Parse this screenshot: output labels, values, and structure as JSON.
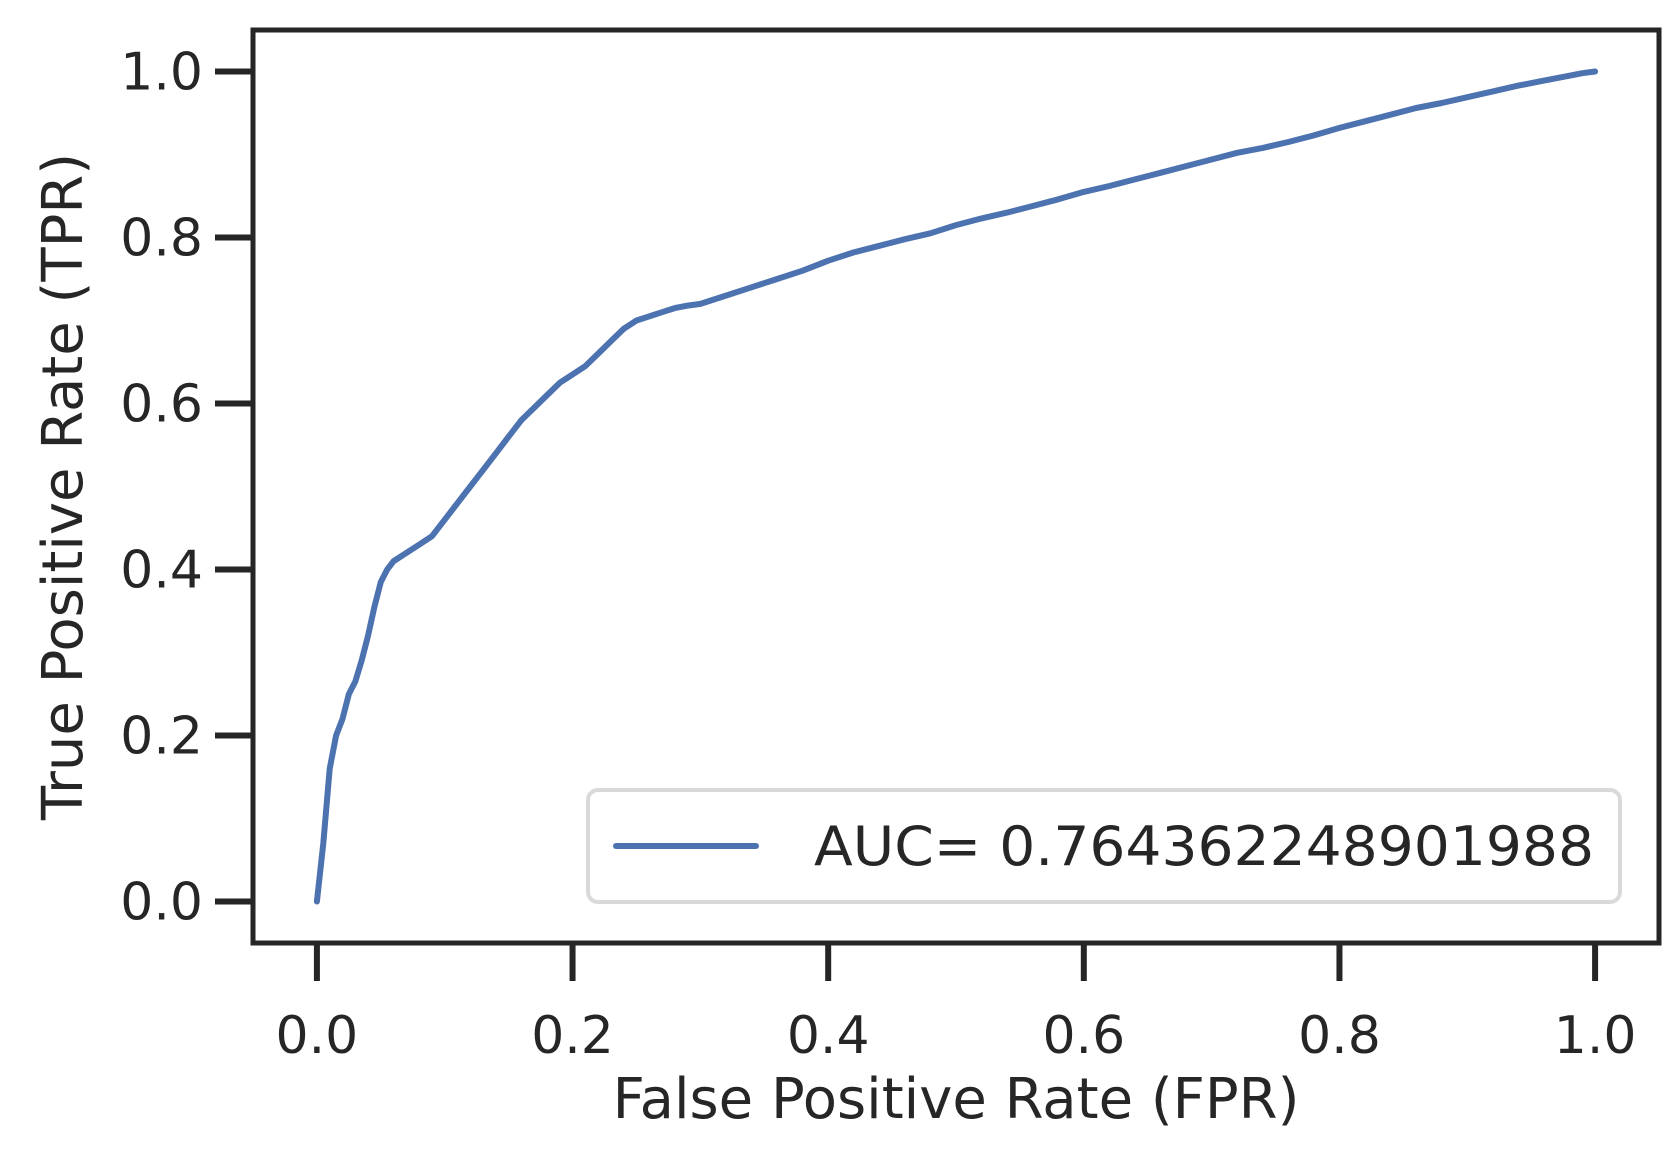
{
  "chart_data": {
    "type": "line",
    "title": "",
    "xlabel": "False Positive Rate (FPR)",
    "ylabel": "True Positive Rate (TPR)",
    "xlim": [
      -0.05,
      1.05
    ],
    "ylim": [
      -0.05,
      1.05
    ],
    "xticks": [
      0.0,
      0.2,
      0.4,
      0.6,
      0.8,
      1.0
    ],
    "xtick_labels": [
      "0.0",
      "0.2",
      "0.4",
      "0.6",
      "0.8",
      "1.0"
    ],
    "yticks": [
      0.0,
      0.2,
      0.4,
      0.6,
      0.8,
      1.0
    ],
    "ytick_labels": [
      "0.0",
      "0.2",
      "0.4",
      "0.6",
      "0.8",
      "1.0"
    ],
    "grid": false,
    "legend": {
      "position": "lower-right"
    },
    "colors": {
      "series": "#4c72b0",
      "axes": "#262626",
      "legend_border": "#d9d9d9"
    },
    "series": [
      {
        "name": "AUC= 0.764362248901988",
        "x": [
          0.0,
          0.005,
          0.01,
          0.015,
          0.02,
          0.025,
          0.03,
          0.035,
          0.04,
          0.045,
          0.05,
          0.055,
          0.06,
          0.07,
          0.08,
          0.09,
          0.1,
          0.11,
          0.12,
          0.13,
          0.14,
          0.15,
          0.16,
          0.17,
          0.18,
          0.19,
          0.2,
          0.21,
          0.22,
          0.23,
          0.24,
          0.25,
          0.26,
          0.27,
          0.28,
          0.29,
          0.3,
          0.32,
          0.34,
          0.36,
          0.38,
          0.4,
          0.42,
          0.44,
          0.46,
          0.48,
          0.5,
          0.52,
          0.54,
          0.56,
          0.58,
          0.6,
          0.62,
          0.64,
          0.66,
          0.68,
          0.7,
          0.72,
          0.74,
          0.76,
          0.78,
          0.8,
          0.82,
          0.84,
          0.86,
          0.88,
          0.9,
          0.92,
          0.94,
          0.96,
          0.98,
          0.99,
          1.0
        ],
        "y": [
          0.0,
          0.07,
          0.16,
          0.2,
          0.22,
          0.25,
          0.265,
          0.29,
          0.32,
          0.355,
          0.385,
          0.4,
          0.41,
          0.42,
          0.43,
          0.44,
          0.46,
          0.48,
          0.5,
          0.52,
          0.54,
          0.56,
          0.58,
          0.595,
          0.61,
          0.625,
          0.635,
          0.645,
          0.66,
          0.675,
          0.69,
          0.7,
          0.705,
          0.71,
          0.715,
          0.718,
          0.72,
          0.73,
          0.74,
          0.75,
          0.76,
          0.772,
          0.782,
          0.79,
          0.798,
          0.805,
          0.815,
          0.823,
          0.83,
          0.838,
          0.846,
          0.855,
          0.862,
          0.87,
          0.878,
          0.886,
          0.894,
          0.902,
          0.908,
          0.915,
          0.923,
          0.932,
          0.94,
          0.948,
          0.956,
          0.962,
          0.969,
          0.976,
          0.983,
          0.989,
          0.995,
          0.998,
          1.0
        ]
      }
    ]
  }
}
